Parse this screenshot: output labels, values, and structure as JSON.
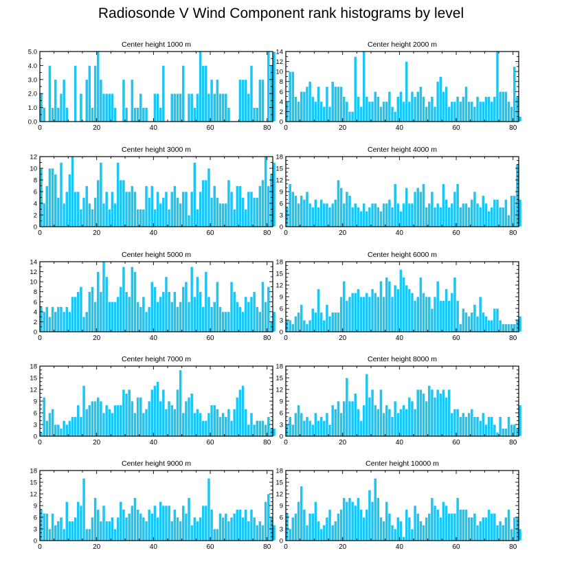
{
  "figure_title": "Radiosonde V Wind Component rank histograms by level",
  "colors": {
    "bar": "#1cc6f4",
    "bar_edge": "#ffffff",
    "axis": "#000000"
  },
  "chart_data": [
    {
      "type": "bar",
      "title": "Center height 1000 m",
      "xlabel": "",
      "ylabel": "",
      "xlim": [
        0,
        82
      ],
      "ylim": [
        0,
        5
      ],
      "xticks": [
        "0",
        "20",
        "40",
        "60",
        "80"
      ],
      "yticks": [
        "0.0",
        "1.0",
        "2.0",
        "3.0",
        "4.0",
        "5.0"
      ],
      "values": [
        2,
        1,
        0,
        4,
        1,
        3,
        1,
        2,
        3,
        1,
        0,
        0,
        4,
        0,
        2,
        0,
        3,
        4,
        1,
        4,
        5,
        3,
        2,
        2,
        2,
        2,
        1,
        0,
        0,
        3,
        1,
        0,
        3,
        1,
        1,
        2,
        1,
        1,
        0,
        0,
        2,
        2,
        1,
        4,
        0,
        0,
        2,
        2,
        2,
        2,
        4,
        0,
        2,
        2,
        1,
        2,
        5,
        4,
        4,
        2,
        3,
        2,
        3,
        2,
        2,
        2,
        1,
        0,
        0,
        0,
        3,
        3,
        3,
        2,
        4,
        1,
        1,
        3,
        3,
        0,
        5,
        4,
        5
      ]
    },
    {
      "type": "bar",
      "title": "Center height 2000 m",
      "xlabel": "",
      "ylabel": "",
      "xlim": [
        0,
        82
      ],
      "ylim": [
        0,
        14
      ],
      "xticks": [
        "0",
        "20",
        "40",
        "60",
        "80"
      ],
      "yticks": [
        "0",
        "2",
        "4",
        "6",
        "8",
        "10",
        "12",
        "14"
      ],
      "values": [
        4,
        10,
        10,
        5,
        4,
        6,
        6,
        7,
        8,
        5,
        4,
        7,
        4,
        3,
        7,
        3,
        8,
        7,
        7,
        7,
        5,
        4,
        2,
        2,
        13,
        5,
        3,
        14,
        5,
        4,
        4,
        6,
        5,
        3,
        4,
        4,
        6,
        3,
        2,
        5,
        6,
        4,
        12,
        4,
        6,
        5,
        6,
        7,
        5,
        3,
        4,
        5,
        3,
        8,
        9,
        6,
        7,
        3,
        4,
        4,
        5,
        4,
        5,
        7,
        4,
        4,
        3,
        5,
        4,
        4,
        5,
        5,
        4,
        5,
        14,
        6,
        6,
        6,
        4,
        3,
        11,
        5,
        1
      ]
    },
    {
      "type": "bar",
      "title": "Center height 3000 m",
      "xlabel": "",
      "ylabel": "",
      "xlim": [
        0,
        82
      ],
      "ylim": [
        0,
        12
      ],
      "xticks": [
        "0",
        "20",
        "40",
        "60",
        "80"
      ],
      "yticks": [
        "0",
        "2",
        "4",
        "6",
        "8",
        "10",
        "12"
      ],
      "values": [
        10,
        4,
        7,
        10,
        10,
        9,
        5,
        11,
        4,
        6,
        9,
        12,
        6,
        6,
        3,
        5,
        7,
        4,
        3,
        5,
        8,
        11,
        4,
        6,
        3,
        6,
        4,
        11,
        8,
        8,
        6,
        6,
        7,
        6,
        3,
        3,
        3,
        7,
        5,
        7,
        3,
        6,
        4,
        5,
        6,
        3,
        6,
        7,
        5,
        4,
        6,
        6,
        2,
        6,
        11,
        3,
        6,
        8,
        8,
        10,
        5,
        7,
        5,
        4,
        4,
        4,
        8,
        6,
        3,
        7,
        7,
        5,
        3,
        6,
        6,
        5,
        5,
        7,
        8,
        12,
        7,
        9,
        11
      ]
    },
    {
      "type": "bar",
      "title": "Center height 4000 m",
      "xlabel": "",
      "ylabel": "",
      "xlim": [
        0,
        82
      ],
      "ylim": [
        0,
        18
      ],
      "xticks": [
        "0",
        "20",
        "40",
        "60",
        "80"
      ],
      "yticks": [
        "0",
        "3",
        "6",
        "9",
        "12",
        "15",
        "18"
      ],
      "values": [
        5,
        11,
        9,
        8,
        6,
        8,
        7,
        9,
        6,
        5,
        7,
        5,
        7,
        6,
        6,
        5,
        6,
        7,
        12,
        10,
        6,
        9,
        8,
        5,
        6,
        5,
        4,
        6,
        4,
        5,
        6,
        6,
        5,
        4,
        6,
        6,
        7,
        5,
        11,
        6,
        4,
        6,
        10,
        6,
        6,
        9,
        10,
        9,
        11,
        5,
        6,
        9,
        5,
        6,
        5,
        11,
        7,
        5,
        6,
        9,
        11,
        5,
        6,
        6,
        5,
        7,
        9,
        6,
        5,
        8,
        6,
        4,
        5,
        7,
        7,
        5,
        5,
        7,
        3,
        8,
        8,
        16,
        7
      ]
    },
    {
      "type": "bar",
      "title": "Center height 5000 m",
      "xlabel": "",
      "ylabel": "",
      "xlim": [
        0,
        82
      ],
      "ylim": [
        0,
        14
      ],
      "xticks": [
        "0",
        "20",
        "40",
        "60",
        "80"
      ],
      "yticks": [
        "0",
        "2",
        "4",
        "6",
        "8",
        "10",
        "12",
        "14"
      ],
      "values": [
        5,
        4,
        5,
        3,
        5,
        4,
        5,
        5,
        4,
        5,
        4,
        7,
        7,
        8,
        9,
        3,
        4,
        8,
        9,
        6,
        12,
        8,
        14,
        11,
        6,
        6,
        6,
        7,
        9,
        13,
        8,
        7,
        13,
        12,
        6,
        5,
        7,
        4,
        5,
        10,
        9,
        6,
        7,
        8,
        11,
        8,
        6,
        8,
        5,
        6,
        9,
        10,
        6,
        13,
        7,
        11,
        8,
        5,
        12,
        7,
        5,
        6,
        10,
        5,
        4,
        4,
        4,
        10,
        8,
        6,
        5,
        4,
        7,
        6,
        7,
        8,
        5,
        4,
        10,
        6,
        9,
        2,
        4
      ]
    },
    {
      "type": "bar",
      "title": "Center height 6000 m",
      "xlabel": "",
      "ylabel": "",
      "xlim": [
        0,
        82
      ],
      "ylim": [
        0,
        18
      ],
      "xticks": [
        "0",
        "20",
        "40",
        "60",
        "80"
      ],
      "yticks": [
        "0",
        "3",
        "6",
        "9",
        "12",
        "15",
        "18"
      ],
      "values": [
        3,
        3,
        2,
        4,
        5,
        7,
        3,
        2,
        3,
        6,
        5,
        11,
        5,
        3,
        7,
        4,
        5,
        5,
        5,
        9,
        13,
        8,
        9,
        10,
        10,
        11,
        9,
        9,
        10,
        9,
        11,
        10,
        9,
        13,
        9,
        14,
        13,
        9,
        12,
        11,
        16,
        14,
        12,
        11,
        10,
        8,
        9,
        14,
        10,
        9,
        9,
        6,
        9,
        13,
        8,
        8,
        11,
        8,
        10,
        14,
        8,
        2,
        6,
        5,
        4,
        5,
        7,
        4,
        9,
        5,
        4,
        3,
        3,
        6,
        6,
        3,
        2,
        2,
        2,
        2,
        2,
        3,
        4
      ]
    },
    {
      "type": "bar",
      "title": "Center height 7000 m",
      "xlabel": "",
      "ylabel": "",
      "xlim": [
        0,
        82
      ],
      "ylim": [
        0,
        18
      ],
      "xticks": [
        "0",
        "20",
        "40",
        "60",
        "80"
      ],
      "yticks": [
        "0",
        "3",
        "6",
        "9",
        "12",
        "15",
        "18"
      ],
      "values": [
        1,
        10,
        4,
        6,
        7,
        3,
        3,
        2,
        4,
        3,
        4,
        5,
        5,
        8,
        5,
        13,
        7,
        8,
        9,
        9,
        10,
        9,
        6,
        8,
        7,
        6,
        8,
        8,
        8,
        12,
        11,
        12,
        9,
        6,
        10,
        10,
        6,
        7,
        9,
        12,
        13,
        14,
        9,
        12,
        7,
        9,
        8,
        7,
        12,
        17,
        6,
        9,
        10,
        11,
        6,
        7,
        6,
        4,
        4,
        6,
        8,
        8,
        7,
        5,
        6,
        5,
        7,
        4,
        7,
        10,
        12,
        13,
        7,
        3,
        6,
        3,
        4,
        4,
        4,
        3,
        5,
        2,
        2
      ]
    },
    {
      "type": "bar",
      "title": "Center height 8000 m",
      "xlabel": "",
      "ylabel": "",
      "xlim": [
        0,
        82
      ],
      "ylim": [
        0,
        18
      ],
      "xticks": [
        "0",
        "20",
        "40",
        "60",
        "80"
      ],
      "yticks": [
        "0",
        "3",
        "6",
        "9",
        "12",
        "15",
        "18"
      ],
      "values": [
        3,
        5,
        3,
        6,
        8,
        6,
        4,
        5,
        4,
        3,
        6,
        4,
        5,
        4,
        6,
        3,
        8,
        7,
        9,
        6,
        9,
        15,
        9,
        9,
        11,
        7,
        4,
        8,
        16,
        10,
        12,
        8,
        7,
        12,
        6,
        8,
        7,
        5,
        9,
        6,
        7,
        8,
        7,
        10,
        9,
        7,
        12,
        12,
        11,
        9,
        13,
        12,
        10,
        12,
        11,
        12,
        10,
        12,
        6,
        7,
        7,
        5,
        6,
        5,
        6,
        7,
        5,
        5,
        4,
        6,
        3,
        5,
        5,
        3,
        1,
        5,
        2,
        2,
        5,
        3,
        3,
        2,
        8
      ]
    },
    {
      "type": "bar",
      "title": "Center height 9000 m",
      "xlabel": "",
      "ylabel": "",
      "xlim": [
        0,
        82
      ],
      "ylim": [
        0,
        18
      ],
      "xticks": [
        "0",
        "20",
        "40",
        "60",
        "80"
      ],
      "yticks": [
        "0",
        "3",
        "6",
        "9",
        "12",
        "15",
        "18"
      ],
      "values": [
        8,
        7,
        7,
        3,
        7,
        4,
        5,
        6,
        3,
        10,
        5,
        5,
        6,
        10,
        9,
        16,
        3,
        3,
        6,
        11,
        8,
        5,
        9,
        5,
        5,
        6,
        3,
        6,
        10,
        8,
        6,
        7,
        9,
        11,
        8,
        7,
        6,
        5,
        8,
        7,
        9,
        6,
        10,
        9,
        9,
        9,
        5,
        8,
        6,
        5,
        9,
        7,
        11,
        4,
        6,
        5,
        6,
        9,
        9,
        16,
        8,
        3,
        3,
        7,
        6,
        7,
        5,
        6,
        7,
        8,
        8,
        6,
        8,
        5,
        8,
        6,
        4,
        5,
        4,
        10,
        12,
        6,
        4
      ]
    },
    {
      "type": "bar",
      "title": "Center height 10000 m",
      "xlabel": "",
      "ylabel": "",
      "xlim": [
        0,
        82
      ],
      "ylim": [
        0,
        18
      ],
      "xticks": [
        "0",
        "20",
        "40",
        "60",
        "80"
      ],
      "yticks": [
        "0",
        "3",
        "6",
        "9",
        "12",
        "15",
        "18"
      ],
      "values": [
        7,
        3,
        6,
        7,
        10,
        14,
        8,
        4,
        7,
        7,
        10,
        5,
        3,
        4,
        6,
        8,
        4,
        5,
        7,
        8,
        11,
        10,
        11,
        10,
        9,
        11,
        8,
        6,
        8,
        13,
        10,
        16,
        11,
        6,
        5,
        10,
        7,
        4,
        3,
        6,
        5,
        1,
        8,
        6,
        3,
        9,
        7,
        5,
        4,
        6,
        7,
        11,
        9,
        8,
        6,
        10,
        9,
        7,
        7,
        7,
        11,
        8,
        8,
        8,
        6,
        6,
        7,
        4,
        5,
        6,
        6,
        8,
        7,
        7,
        4,
        5,
        4,
        6,
        8,
        3,
        6,
        6,
        3
      ]
    }
  ]
}
